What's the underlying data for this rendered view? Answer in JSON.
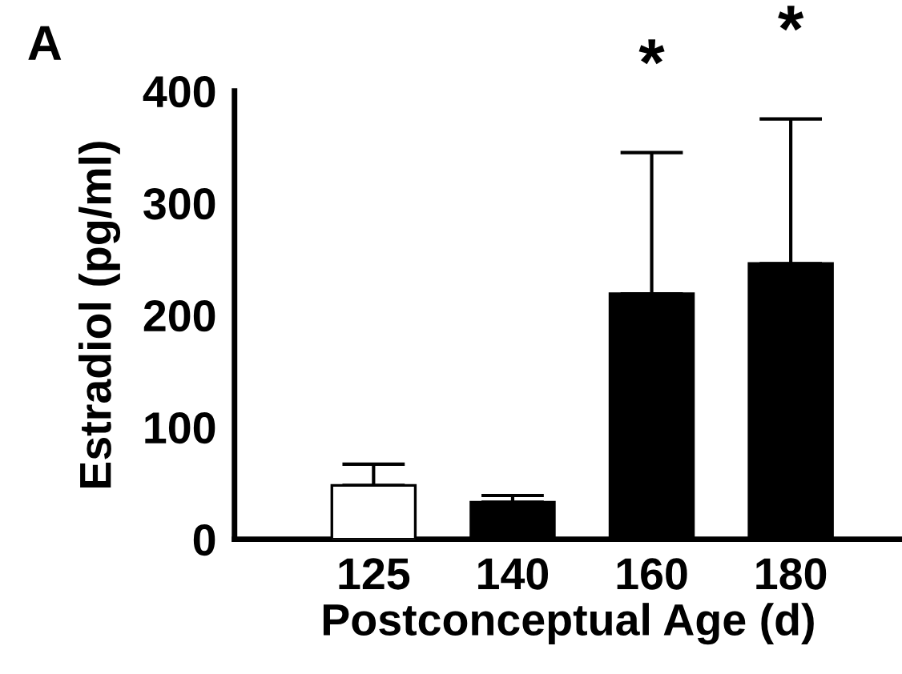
{
  "chart_data": {
    "type": "bar",
    "title": "A",
    "xlabel": "Postconceptual Age (d)",
    "ylabel": "Estradiol (pg/ml)",
    "categories": [
      "125",
      "140",
      "160",
      "180"
    ],
    "values": [
      48,
      33,
      219,
      246
    ],
    "colors": [
      "#ffffff",
      "#000000",
      "#000000",
      "#000000"
    ],
    "errors": [
      [
        48,
        67
      ],
      [
        33,
        39
      ],
      [
        219,
        345
      ],
      [
        246,
        375
      ]
    ],
    "ylim": [
      0,
      400
    ],
    "yticks": [
      0,
      100,
      200,
      300,
      400
    ],
    "grid": false,
    "annotations": [
      {
        "text": "*",
        "x": "160",
        "y": 345
      },
      {
        "text": "*",
        "x": "180",
        "y": 375
      }
    ]
  }
}
